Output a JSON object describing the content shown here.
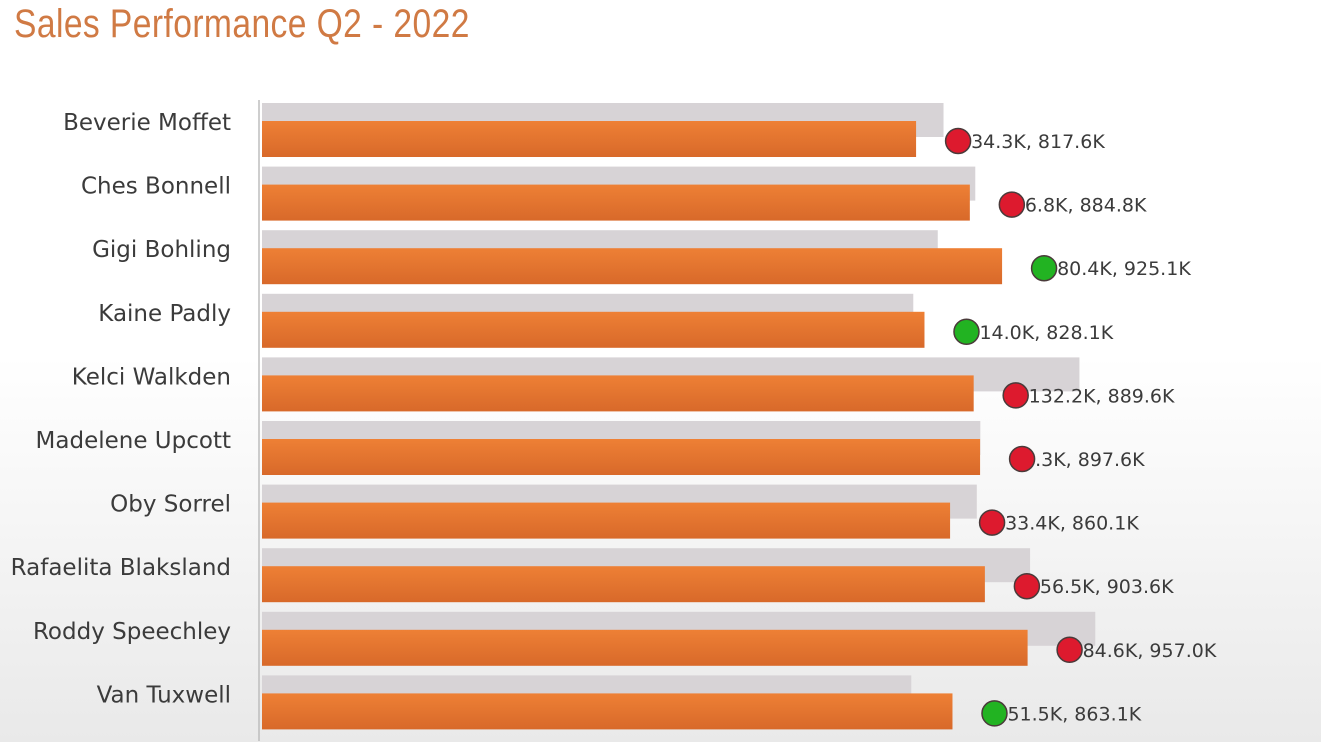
{
  "colors": {
    "title": "#d07a44",
    "actual_bar": "#ee8035",
    "actual_bar_bottom": "#d8692a",
    "target_bar": "#d7d3d6",
    "status_good": "#22b322",
    "status_bad": "#dd1a2e",
    "text": "#3b3b3b"
  },
  "chart_data": {
    "type": "bar",
    "orientation": "horizontal",
    "title": "Sales Performance Q2 - 2022",
    "xlabel": "",
    "ylabel": "",
    "xlim": [
      0,
      1000
    ],
    "unit": "K",
    "grid": false,
    "legend": "none",
    "categories": [
      "Beverie Moffet",
      "Ches Bonnell",
      "Gigi Bohling",
      "Kaine Padly",
      "Kelci Walkden",
      "Madelene Upcott",
      "Oby Sorrel",
      "Rafaelita Blaksland",
      "Roddy Speechley",
      "Van Tuxwell"
    ],
    "series": [
      {
        "values": [
          851.9,
          891.6,
          844.7,
          814.1,
          1021.8,
          897.9,
          893.5,
          960.1,
          1041.6,
          811.6
        ]
      },
      {
        "values": [
          817.6,
          884.8,
          925.1,
          828.1,
          889.6,
          897.6,
          860.1,
          903.6,
          957.0,
          863.1
        ]
      }
    ],
    "status": [
      "bad",
      "bad",
      "good",
      "good",
      "bad",
      "bad",
      "bad",
      "bad",
      "bad",
      "good"
    ],
    "data_labels": [
      "34.3K, 817.6K",
      "6.8K, 884.8K",
      "80.4K, 925.1K",
      "14.0K, 828.1K",
      "132.2K, 889.6K",
      ".3K, 897.6K",
      "33.4K, 860.1K",
      "56.5K, 903.6K",
      "84.6K, 957.0K",
      "51.5K, 863.1K"
    ]
  }
}
